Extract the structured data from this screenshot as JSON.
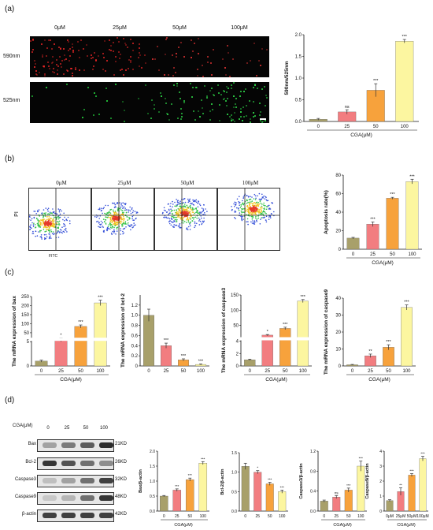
{
  "panels": {
    "a": {
      "label": "(a)",
      "conc_labels": [
        "0μM",
        "25μM",
        "50μM",
        "100μM"
      ],
      "row_labels": [
        "590nm",
        "525nm"
      ]
    },
    "b": {
      "label": "(b)",
      "conc_labels": [
        "0μM",
        "25μM",
        "50μM",
        "100μM"
      ],
      "y_axis_label": "PI",
      "x_axis_label": "FITC"
    },
    "c": {
      "label": "(c)"
    },
    "d": {
      "label": "(d)",
      "conc_header_label": "CGA(μM)",
      "conc_labels": [
        "0",
        "25",
        "50",
        "100"
      ],
      "proteins": [
        {
          "name": "Bax",
          "weight": "21KD",
          "intensity": [
            0.35,
            0.55,
            0.7,
            0.95
          ]
        },
        {
          "name": "Bcl-2",
          "weight": "26KD",
          "intensity": [
            0.9,
            0.75,
            0.6,
            0.45
          ]
        },
        {
          "name": "Caspase3",
          "weight": "32KD",
          "intensity": [
            0.2,
            0.35,
            0.6,
            0.85
          ]
        },
        {
          "name": "Caspase9",
          "weight": "48KD",
          "intensity": [
            0.15,
            0.25,
            0.6,
            0.9
          ]
        },
        {
          "name": "β-actin",
          "weight": "42KD",
          "intensity": [
            0.85,
            0.85,
            0.85,
            0.85
          ]
        }
      ]
    }
  },
  "colors": {
    "c0": "#a8a06a",
    "c25": "#f27d80",
    "c50": "#f7a23c",
    "c100": "#fcf6a0",
    "errbar": "#333333"
  },
  "chart_data": [
    {
      "id": "a",
      "type": "bar",
      "categories": [
        "0",
        "25",
        "50",
        "100"
      ],
      "values": [
        0.05,
        0.22,
        0.72,
        1.85
      ],
      "errors": [
        0.02,
        0.05,
        0.15,
        0.04
      ],
      "sig": [
        "",
        "ns",
        "***",
        "***"
      ],
      "ylabel": "590nm/525nm",
      "xlabel": "CGA(μM)",
      "ylim": [
        0,
        2.0
      ],
      "yticks": [
        0,
        0.5,
        1.0,
        1.5,
        2.0
      ],
      "ytick_labels": [
        "0.0",
        "0.5",
        "1.0",
        "1.5",
        "2.0"
      ]
    },
    {
      "id": "b",
      "type": "bar",
      "categories": [
        "0",
        "25",
        "50",
        "100"
      ],
      "values": [
        12,
        27,
        55,
        73
      ],
      "errors": [
        0.8,
        2.5,
        1.0,
        2.5
      ],
      "sig": [
        "",
        "***",
        "***",
        "***"
      ],
      "ylabel": "Apoptosis rate(%)",
      "xlabel": "CGA(μM)",
      "ylim": [
        0,
        80
      ],
      "yticks": [
        0,
        20,
        40,
        60,
        80
      ],
      "ytick_labels": [
        "0",
        "20",
        "40",
        "60",
        "80"
      ]
    },
    {
      "id": "c_bax",
      "type": "bar",
      "categories": [
        "0",
        "25",
        "50",
        "100"
      ],
      "values": [
        1,
        20,
        85,
        215
      ],
      "errors": [
        0.2,
        1.5,
        8,
        15
      ],
      "sig": [
        "",
        "*",
        "***",
        "***"
      ],
      "ylabel": "The mRNA expression of bax",
      "xlabel": "CGA(μM)",
      "broken": true,
      "break_at": [
        5,
        20
      ],
      "ylim": [
        0,
        250
      ],
      "yticks": [
        0,
        5,
        50,
        100,
        150,
        200,
        250
      ],
      "ytick_labels": [
        "0",
        "5",
        "50",
        "100",
        "150",
        "200",
        "250"
      ]
    },
    {
      "id": "c_bcl2",
      "type": "bar",
      "categories": [
        "0",
        "25",
        "50",
        "100"
      ],
      "values": [
        1.0,
        0.4,
        0.12,
        0.03
      ],
      "errors": [
        0.12,
        0.05,
        0.02,
        0.01
      ],
      "sig": [
        "",
        "***",
        "***",
        "***"
      ],
      "ylabel": "The mRNA expression of bcl-2",
      "xlabel": "",
      "ylim": [
        0,
        1.4
      ],
      "yticks": [
        0,
        0.2,
        0.4,
        0.6,
        0.8,
        1.0,
        1.2
      ],
      "ytick_labels": [
        "0",
        "0.2",
        "0.4",
        "0.6",
        "0.8",
        "1.0",
        "1.2"
      ]
    },
    {
      "id": "c_casp3",
      "type": "bar",
      "categories": [
        "0",
        "25",
        "50",
        "100"
      ],
      "values": [
        1,
        18,
        40,
        130
      ],
      "errors": [
        0.1,
        2,
        4,
        5
      ],
      "sig": [
        "",
        "*",
        "***",
        "***"
      ],
      "ylabel": "The mRNA expression of caspase3",
      "xlabel": "CGA(μM)",
      "broken": true,
      "break_at": [
        4,
        10
      ],
      "ylim": [
        0,
        150
      ],
      "yticks": [
        0,
        2,
        4,
        50,
        100,
        150
      ],
      "ytick_labels": [
        "0",
        "2",
        "4",
        "50",
        "100",
        "150"
      ]
    },
    {
      "id": "c_casp9",
      "type": "bar",
      "categories": [
        "0",
        "25",
        "50",
        "100"
      ],
      "values": [
        0.7,
        6,
        11,
        34.5
      ],
      "errors": [
        0.2,
        1,
        1.5,
        1.5
      ],
      "sig": [
        "",
        "**",
        "***",
        "***"
      ],
      "ylabel": "The mRNA expression of caspase9",
      "xlabel": "CGA(μM)",
      "ylim": [
        0,
        40
      ],
      "yticks": [
        0,
        10,
        20,
        30,
        40
      ],
      "ytick_labels": [
        "0",
        "10",
        "20",
        "30",
        "40"
      ]
    },
    {
      "id": "d_bax",
      "type": "bar",
      "categories": [
        "0",
        "25",
        "50",
        "100"
      ],
      "values": [
        0.5,
        0.7,
        1.05,
        1.6
      ],
      "errors": [
        0.02,
        0.04,
        0.05,
        0.05
      ],
      "sig": [
        "",
        "***",
        "***",
        "***"
      ],
      "ylabel": "Bax/β-actin",
      "xlabel": "CGA(μM)",
      "ylim": [
        0,
        2.0
      ],
      "yticks": [
        0,
        0.5,
        1.0,
        1.5,
        2.0
      ],
      "ytick_labels": [
        "0.0",
        "0.5",
        "1.0",
        "1.5",
        "2.0"
      ]
    },
    {
      "id": "d_bcl2",
      "type": "bar",
      "categories": [
        "0",
        "25",
        "50",
        "100"
      ],
      "values": [
        1.15,
        1.0,
        0.7,
        0.5
      ],
      "errors": [
        0.08,
        0.04,
        0.04,
        0.04
      ],
      "sig": [
        "",
        "*",
        "***",
        "***"
      ],
      "ylabel": "Bcl-2/β-actin",
      "xlabel": "",
      "ylim": [
        0,
        1.5
      ],
      "yticks": [
        0,
        0.5,
        1.0,
        1.5
      ],
      "ytick_labels": [
        "0.0",
        "0.5",
        "1.0",
        "1.5"
      ]
    },
    {
      "id": "d_casp3",
      "type": "bar",
      "categories": [
        "0",
        "25",
        "50",
        "100"
      ],
      "values": [
        0.2,
        0.28,
        0.42,
        0.9
      ],
      "errors": [
        0.02,
        0.03,
        0.04,
        0.1
      ],
      "sig": [
        "",
        "ns",
        "***",
        "***"
      ],
      "ylabel": "Caspase3/β-actin",
      "xlabel": "CGA(μM)",
      "ylim": [
        0,
        1.2
      ],
      "yticks": [
        0,
        0.4,
        0.8,
        1.2
      ],
      "ytick_labels": [
        "0.0",
        "0.4",
        "0.8",
        "1.2"
      ]
    },
    {
      "id": "d_casp9",
      "type": "bar",
      "categories": [
        "0μM",
        "25μM",
        "50μM",
        "100μM"
      ],
      "values": [
        0.7,
        1.3,
        2.4,
        3.5
      ],
      "errors": [
        0.06,
        0.25,
        0.1,
        0.15
      ],
      "sig": [
        "",
        "**",
        "***",
        "***"
      ],
      "ylabel": "Caspase9/β-actin",
      "xlabel": "CGA(μM)",
      "ylim": [
        0,
        4
      ],
      "yticks": [
        0,
        1,
        2,
        3,
        4
      ],
      "ytick_labels": [
        "0",
        "1",
        "2",
        "3",
        "4"
      ]
    }
  ]
}
